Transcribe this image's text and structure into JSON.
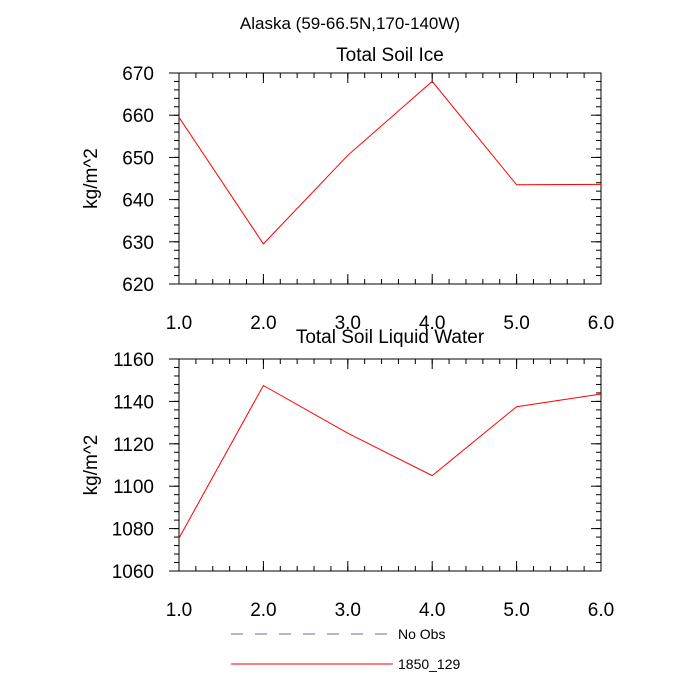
{
  "main_title": "Alaska (59-66.5N,170-140W)",
  "colors": {
    "series_1850_129": "#ff0000",
    "no_obs": "#6b6bb0"
  },
  "chart_data": [
    {
      "type": "line",
      "title": "Total Soil Ice",
      "xlabel": "",
      "ylabel": "kg/m^2",
      "xlim": [
        1.0,
        6.0
      ],
      "ylim": [
        620,
        670
      ],
      "xticks": [
        1,
        2,
        3,
        4,
        5,
        6
      ],
      "xtick_labels": [
        "1.0",
        "2.0",
        "3.0",
        "4.0",
        "5.0",
        "6.0"
      ],
      "yticks": [
        620,
        630,
        640,
        650,
        660,
        670
      ],
      "ytick_labels": [
        "620",
        "630",
        "640",
        "650",
        "660",
        "670"
      ],
      "series": [
        {
          "name": "1850_129",
          "x": [
            1,
            2,
            3,
            4,
            5,
            6
          ],
          "values": [
            659.5,
            629.5,
            650.5,
            668,
            643.5,
            643.6
          ]
        }
      ]
    },
    {
      "type": "line",
      "title": "Total Soil Liquid Water",
      "xlabel": "",
      "ylabel": "kg/m^2",
      "xlim": [
        1.0,
        6.0
      ],
      "ylim": [
        1060,
        1160
      ],
      "xticks": [
        1,
        2,
        3,
        4,
        5,
        6
      ],
      "xtick_labels": [
        "1.0",
        "2.0",
        "3.0",
        "4.0",
        "5.0",
        "6.0"
      ],
      "yticks": [
        1060,
        1080,
        1100,
        1120,
        1140,
        1160
      ],
      "ytick_labels": [
        "1060",
        "1080",
        "1100",
        "1120",
        "1140",
        "1160"
      ],
      "series": [
        {
          "name": "1850_129",
          "x": [
            1,
            2,
            3,
            4,
            5,
            6
          ],
          "values": [
            1075.5,
            1147.5,
            1125,
            1105,
            1137.5,
            1143.5
          ]
        }
      ]
    }
  ],
  "legend": [
    {
      "label": "No Obs",
      "style": "dashed"
    },
    {
      "label": "1850_129",
      "style": "solid"
    }
  ]
}
